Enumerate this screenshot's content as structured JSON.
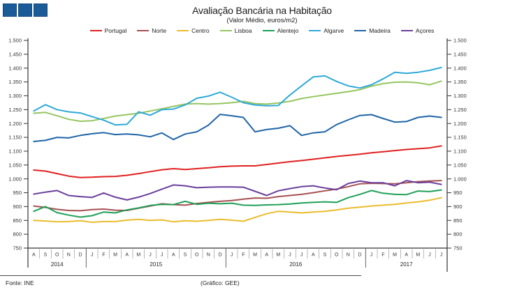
{
  "logo": {
    "square_count": 3,
    "color": "#1b5b97"
  },
  "header": {
    "title": "Avaliação Bancária na Habitação",
    "subtitle": "(Valor Médio, euros/m2)"
  },
  "footer": {
    "source": "Fonte: INE",
    "credit": "(Gráfico: GEE)"
  },
  "chart_data": {
    "type": "line",
    "title": "Avaliação Bancária na Habitação",
    "subtitle": "(Valor Médio, euros/m2)",
    "ylabel": "euros/m2",
    "ylim": [
      750,
      1500
    ],
    "y_tick_step": 50,
    "y_tick_labels": [
      "1.500",
      "1.450",
      "1.400",
      "1.350",
      "1.300",
      "1.250",
      "1.200",
      "1.150",
      "1.100",
      "1.050",
      "1.000",
      "950",
      "900",
      "850",
      "800",
      "750"
    ],
    "grid": false,
    "legend_position": "top",
    "dual_y_axis": true,
    "x_months": [
      "A",
      "S",
      "O",
      "N",
      "D",
      "J",
      "F",
      "M",
      "A",
      "M",
      "J",
      "J",
      "A",
      "S",
      "O",
      "N",
      "D",
      "J",
      "F",
      "M",
      "A",
      "M",
      "J",
      "J",
      "A",
      "S",
      "O",
      "N",
      "D",
      "J",
      "F",
      "M",
      "A",
      "M",
      "J",
      "J"
    ],
    "x_years": [
      {
        "label": "2014",
        "months": 5
      },
      {
        "label": "2015",
        "months": 12
      },
      {
        "label": "2016",
        "months": 12
      },
      {
        "label": "2017",
        "months": 7
      }
    ],
    "series": [
      {
        "name": "Portugal",
        "color": "#e02020",
        "values": [
          1032,
          1028,
          1019,
          1010,
          1005,
          1006,
          1008,
          1009,
          1013,
          1019,
          1026,
          1033,
          1037,
          1034,
          1037,
          1040,
          1044,
          1046,
          1047,
          1047,
          1052,
          1057,
          1062,
          1066,
          1071,
          1076,
          1081,
          1085,
          1089,
          1094,
          1098,
          1102,
          1106,
          1109,
          1112,
          1119
        ]
      },
      {
        "name": "Norte",
        "color": "#a65052",
        "values": [
          902,
          897,
          890,
          886,
          885,
          889,
          891,
          887,
          886,
          894,
          902,
          910,
          907,
          905,
          911,
          915,
          919,
          922,
          927,
          931,
          930,
          936,
          940,
          944,
          950,
          957,
          963,
          972,
          982,
          984,
          983,
          982,
          986,
          990,
          992,
          994
        ]
      },
      {
        "name": "Centro",
        "color": "#eabc2d",
        "values": [
          850,
          848,
          845,
          846,
          849,
          843,
          846,
          846,
          851,
          854,
          850,
          852,
          845,
          849,
          847,
          850,
          854,
          851,
          847,
          861,
          874,
          883,
          880,
          877,
          880,
          883,
          888,
          894,
          898,
          902,
          905,
          908,
          913,
          917,
          923,
          932
        ]
      },
      {
        "name": "Lisboa",
        "color": "#96c561",
        "values": [
          1237,
          1240,
          1228,
          1215,
          1208,
          1210,
          1218,
          1227,
          1232,
          1237,
          1245,
          1253,
          1262,
          1270,
          1272,
          1270,
          1272,
          1275,
          1280,
          1272,
          1270,
          1274,
          1280,
          1290,
          1297,
          1303,
          1309,
          1315,
          1322,
          1335,
          1344,
          1349,
          1350,
          1347,
          1340,
          1353
        ]
      },
      {
        "name": "Alentejo",
        "color": "#1fa058",
        "values": [
          883,
          900,
          878,
          869,
          862,
          867,
          880,
          877,
          888,
          895,
          904,
          908,
          907,
          919,
          908,
          912,
          910,
          912,
          905,
          904,
          906,
          907,
          909,
          913,
          915,
          917,
          915,
          932,
          944,
          958,
          948,
          944,
          943,
          956,
          954,
          960
        ]
      },
      {
        "name": "Algarve",
        "color": "#2ea9d8",
        "values": [
          1245,
          1268,
          1250,
          1242,
          1238,
          1225,
          1212,
          1195,
          1197,
          1242,
          1230,
          1250,
          1252,
          1267,
          1291,
          1299,
          1313,
          1295,
          1275,
          1267,
          1264,
          1265,
          1303,
          1336,
          1368,
          1372,
          1352,
          1336,
          1328,
          1340,
          1361,
          1385,
          1381,
          1385,
          1392,
          1402
        ]
      },
      {
        "name": "Madeira",
        "color": "#2065a8",
        "values": [
          1135,
          1139,
          1150,
          1148,
          1157,
          1163,
          1167,
          1160,
          1162,
          1159,
          1152,
          1166,
          1142,
          1162,
          1170,
          1194,
          1233,
          1228,
          1222,
          1170,
          1178,
          1183,
          1192,
          1157,
          1166,
          1170,
          1196,
          1213,
          1229,
          1232,
          1218,
          1205,
          1207,
          1222,
          1227,
          1222
        ]
      },
      {
        "name": "Açores",
        "color": "#6a3f9c",
        "values": [
          945,
          952,
          958,
          940,
          936,
          933,
          949,
          934,
          924,
          934,
          947,
          963,
          978,
          975,
          968,
          970,
          971,
          971,
          970,
          955,
          940,
          957,
          965,
          972,
          975,
          967,
          961,
          983,
          992,
          986,
          986,
          975,
          994,
          986,
          988,
          980
        ]
      }
    ]
  }
}
